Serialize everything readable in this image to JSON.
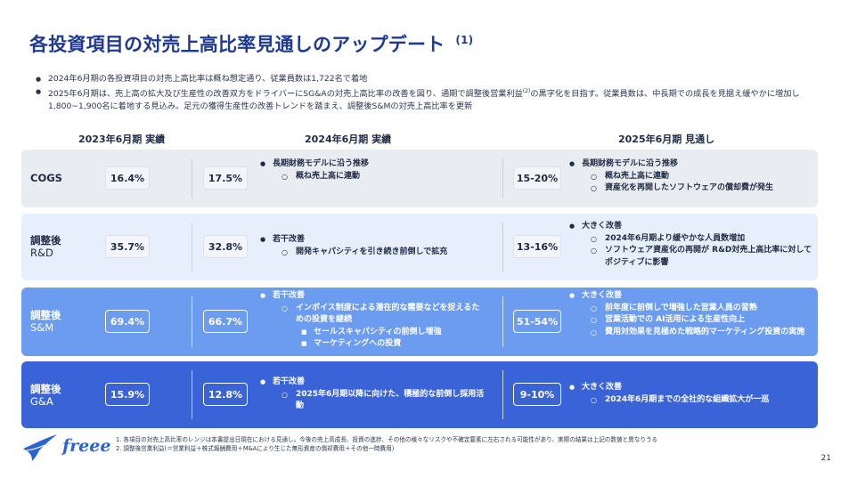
{
  "title": {
    "text": "各投資項目の対売上高比率見通しのアップデート",
    "footnote_ref": "(1)"
  },
  "bullets": [
    "2024年6月期の各投資項目の対売上高比率は概ね想定通り、従業員数は1,722名で着地",
    "2025年6月期は、売上高の拡大及び生産性の改善双方をドライバーにSG&Aの対売上高比率の改善を図り、通期で調整後営業利益",
    "の黒字化を目指す。従業員数は、中長期での成長を見据え緩やかに増加し1,800~1,900名に着地する見込み。足元の獲得生産性の改善トレンドを踏まえ、調整後S&Mの対売上高比率を更新"
  ],
  "bullet2_sup": "(2)",
  "columns": {
    "c1": "2023年6月期 実績",
    "c2": "2024年6月期 実績",
    "c3": "2025年6月期 見通し"
  },
  "rows": [
    {
      "label_main": "COGS",
      "label_sub": "",
      "v2023": "16.4%",
      "v2024": "17.5%",
      "v2025": "15-20%",
      "notes2024": [
        {
          "lvl": 1,
          "text": "長期財務モデルに沿う推移"
        },
        {
          "lvl": 2,
          "text": "概ね売上高に連動"
        }
      ],
      "notes2025": [
        {
          "lvl": 1,
          "text": "長期財務モデルに沿う推移"
        },
        {
          "lvl": 2,
          "text": "概ね売上高に連動"
        },
        {
          "lvl": 2,
          "text": "資産化を再開したソフトウェアの償却費が発生"
        }
      ]
    },
    {
      "label_main": "調整後",
      "label_sub": "R&D",
      "v2023": "35.7%",
      "v2024": "32.8%",
      "v2025": "13-16%",
      "notes2024": [
        {
          "lvl": 1,
          "text": "若干改善"
        },
        {
          "lvl": 2,
          "text": "開発キャパシティを引き続き前倒しで拡充"
        }
      ],
      "notes2025": [
        {
          "lvl": 1,
          "text": "大きく改善"
        },
        {
          "lvl": 2,
          "text": "2024年6月期より緩やかな人員数増加"
        },
        {
          "lvl": 2,
          "text": "ソフトウェア資産化の再開が R&D対売上高比率に対してポジティブに影響"
        }
      ]
    },
    {
      "label_main": "調整後",
      "label_sub": "S&M",
      "v2023": "69.4%",
      "v2024": "66.7%",
      "v2025": "51-54%",
      "notes2024": [
        {
          "lvl": 1,
          "text": "若干改善"
        },
        {
          "lvl": 2,
          "text": "インボイス制度による潜在的な需要などを捉えるための投資を継続"
        },
        {
          "lvl": 3,
          "text": "セールスキャパシティの前倒し増強"
        },
        {
          "lvl": 3,
          "text": "マーケティングへの投資"
        }
      ],
      "notes2025": [
        {
          "lvl": 1,
          "text": "大きく改善"
        },
        {
          "lvl": 2,
          "text": "前年度に前倒しで増強した営業人員の習熟"
        },
        {
          "lvl": 2,
          "text": "営業活動での AI活用による生産性向上"
        },
        {
          "lvl": 2,
          "text": "費用対効果を見極めた戦略的マーケティング投資の実施"
        }
      ]
    },
    {
      "label_main": "調整後",
      "label_sub": "G&A",
      "v2023": "15.9%",
      "v2024": "12.8%",
      "v2025": "9-10%",
      "notes2024": [
        {
          "lvl": 1,
          "text": "若干改善"
        },
        {
          "lvl": 2,
          "text": "2025年6月期以降に向けた、積極的な前倒し採用活動"
        }
      ],
      "notes2025": [
        {
          "lvl": 1,
          "text": "大きく改善"
        },
        {
          "lvl": 2,
          "text": "2024年6月期までの全社的な組織拡大が一巡"
        }
      ]
    }
  ],
  "footnotes": [
    "1. 各項目の対売上高比率のレンジは本書提出日現在における見通し。今後の売上高成長、投資の進捗、その他の様々なリスクや不確定要素に左右される可能性があり、実際の結果は上記の数値と異なりうる",
    "2. 調整後営業利益(＝営業利益＋株式報酬費用＋M&Aにより生じた無形資産の償却費用＋その他一時費用)"
  ],
  "logo": {
    "icon": "freee-bird-icon",
    "text": "freee"
  },
  "page_number": "21",
  "colors": {
    "title": "#1f3a93",
    "row1": "#e9ecf1",
    "row2": "#e7effc",
    "row3": "#6c9cf0",
    "row4": "#3a63d8",
    "brand": "#2a63d6"
  }
}
